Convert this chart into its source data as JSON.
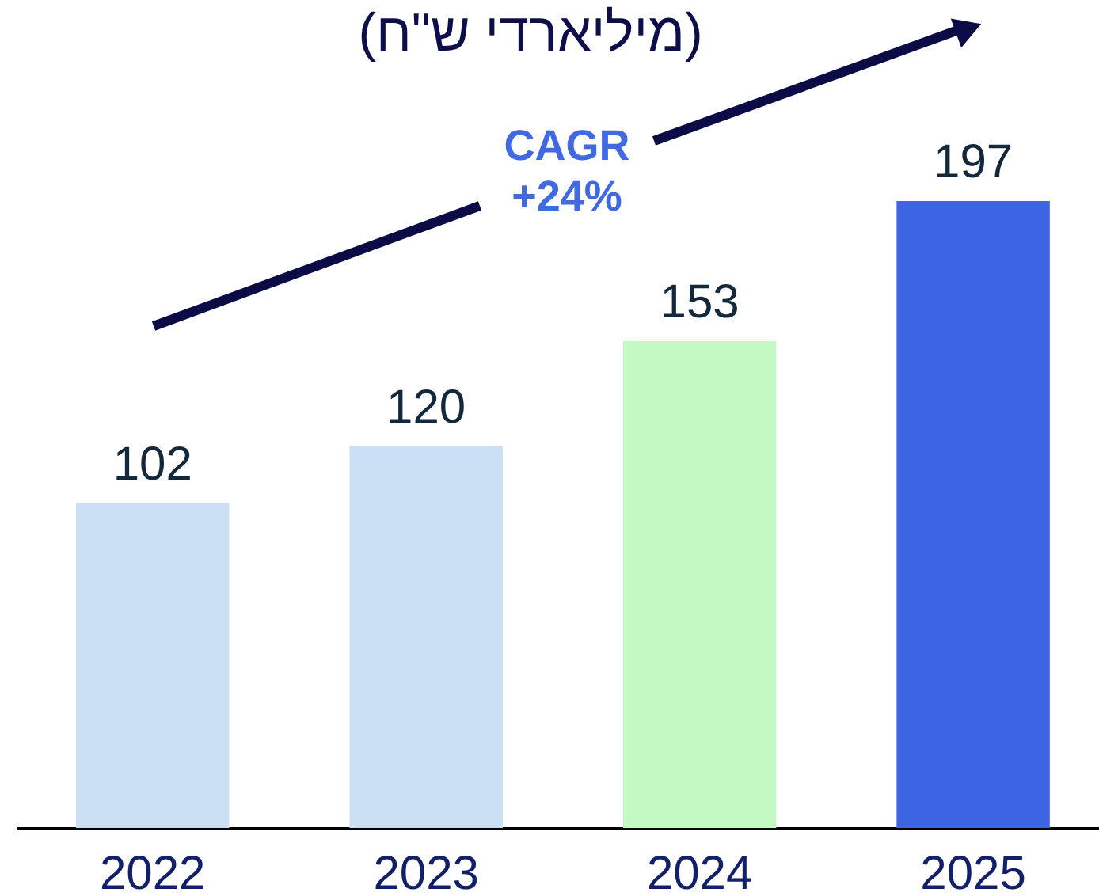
{
  "chart_data": {
    "type": "bar",
    "title": "(מיליארדי ש\"ח)",
    "categories": [
      "2022",
      "2023",
      "2024",
      "2025"
    ],
    "values": [
      102,
      120,
      153,
      197
    ],
    "colors": [
      "#cbe0f4",
      "#cbe0f4",
      "#c3f9c3",
      "#3d65e3"
    ],
    "data_labels": true,
    "annotations": [
      "CAGR\n+24%"
    ]
  }
}
